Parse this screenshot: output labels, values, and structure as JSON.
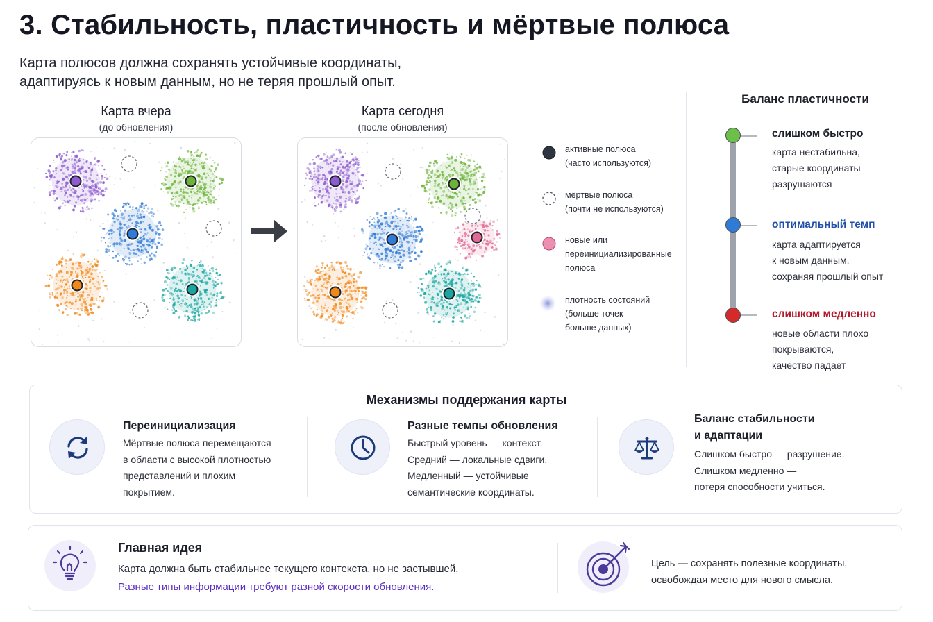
{
  "header": {
    "title": "3. Стабильность, пластичность и мёртвые полюса",
    "subtitle_line1": "Карта полюсов должна сохранять устойчивые координаты,",
    "subtitle_line2": "адаптируясь к новым данным, но не теряя прошлый опыт."
  },
  "map_yesterday": {
    "title": "Карта вчера",
    "subtitle": "(до обновления)",
    "active_poles": [
      {
        "color": "#8e5bd0"
      },
      {
        "color": "#6cb33a"
      },
      {
        "color": "#2f7bd6"
      },
      {
        "color": "#f0881a"
      },
      {
        "color": "#1aa6a0"
      }
    ],
    "dead_poles": 3
  },
  "map_today": {
    "title": "Карта сегодня",
    "subtitle": "(после обновления)",
    "active_poles": [
      {
        "color": "#8e5bd0"
      },
      {
        "color": "#6cb33a"
      },
      {
        "color": "#2f7bd6"
      },
      {
        "color": "#f0881a"
      },
      {
        "color": "#1aa6a0"
      }
    ],
    "new_poles": [
      {
        "color": "#e06a94"
      }
    ],
    "dead_poles": 3
  },
  "legend": {
    "active_line1": "активные полюса",
    "active_line2": "(часто используются)",
    "dead_line1": "мёртвые полюса",
    "dead_line2": "(почти не используются)",
    "new_line1": "новые или",
    "new_line2": "переинициализированные",
    "new_line3": "полюса",
    "density_line1": "плотность состояний",
    "density_line2": "(больше точек —",
    "density_line3": "больше данных)"
  },
  "balance": {
    "title": "Баланс пластичности",
    "fast": {
      "label": "слишком быстро",
      "line1": "карта нестабильна,",
      "line2": "старые координаты",
      "line3": "разрушаются",
      "color": "#6cc04a",
      "label_color": "#1c1f2a"
    },
    "optimal": {
      "label": "оптимальный темп",
      "line1": "карта адаптируется",
      "line2": "к новым данным,",
      "line3": "сохраняя прошлый опыт",
      "color": "#2f7bd6",
      "label_color": "#1f4fa8"
    },
    "slow": {
      "label": "слишком медленно",
      "line1": "новые области плохо",
      "line2": "покрываются,",
      "line3": "качество падает",
      "color": "#d42a2a",
      "label_color": "#b3172a"
    }
  },
  "mechanisms": {
    "title": "Механизмы поддержания карты",
    "items": [
      {
        "icon": "refresh-icon",
        "title": "Переинициализация",
        "line1": "Мёртвые полюса перемещаются",
        "line2": "в области с высокой плотностью",
        "line3": "представлений и плохим",
        "line4": "покрытием."
      },
      {
        "icon": "clock-icon",
        "title": "Разные темпы обновления",
        "line1": "Быстрый уровень — контекст.",
        "line2": "Средний — локальные сдвиги.",
        "line3": "Медленный — устойчивые",
        "line4": "семантические координаты."
      },
      {
        "icon": "scales-icon",
        "title_line1": "Баланс стабильности",
        "title_line2": "и адаптации",
        "line1": "Слишком быстро — разрушение.",
        "line2": "Слишком медленно —",
        "line3": "потеря способности учиться."
      }
    ]
  },
  "main_idea": {
    "title": "Главная идея",
    "line1": "Карта должна быть стабильнее текущего контекста, но не застывшей.",
    "line2": "Разные типы информации требуют разной скорости обновления.",
    "goal_line1": "Цель — сохранять полезные координаты,",
    "goal_line2": "освобождая место для нового смысла."
  }
}
